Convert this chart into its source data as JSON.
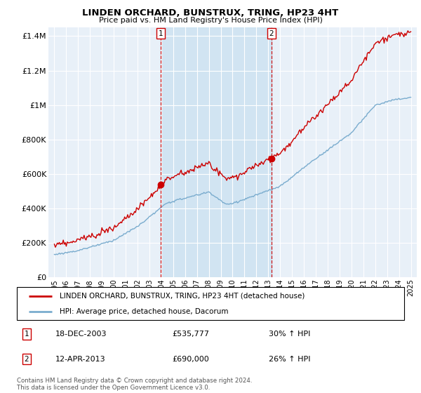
{
  "title": "LINDEN ORCHARD, BUNSTRUX, TRING, HP23 4HT",
  "subtitle": "Price paid vs. HM Land Registry's House Price Index (HPI)",
  "legend_line1": "LINDEN ORCHARD, BUNSTRUX, TRING, HP23 4HT (detached house)",
  "legend_line2": "HPI: Average price, detached house, Dacorum",
  "sale1_date": "18-DEC-2003",
  "sale1_price": "£535,777",
  "sale1_hpi": "30% ↑ HPI",
  "sale2_date": "12-APR-2013",
  "sale2_price": "£690,000",
  "sale2_hpi": "26% ↑ HPI",
  "footnote": "Contains HM Land Registry data © Crown copyright and database right 2024.\nThis data is licensed under the Open Government Licence v3.0.",
  "red_color": "#cc0000",
  "blue_color": "#7aacce",
  "shade_color": "#ddeeff",
  "sale1_year": 2003.96,
  "sale2_year": 2013.28,
  "sale1_price_val": 535777,
  "sale2_price_val": 690000,
  "ylim_max": 1450000,
  "xlim_start": 1994.5,
  "xlim_end": 2025.5,
  "bg_color": "#e8f0f8"
}
